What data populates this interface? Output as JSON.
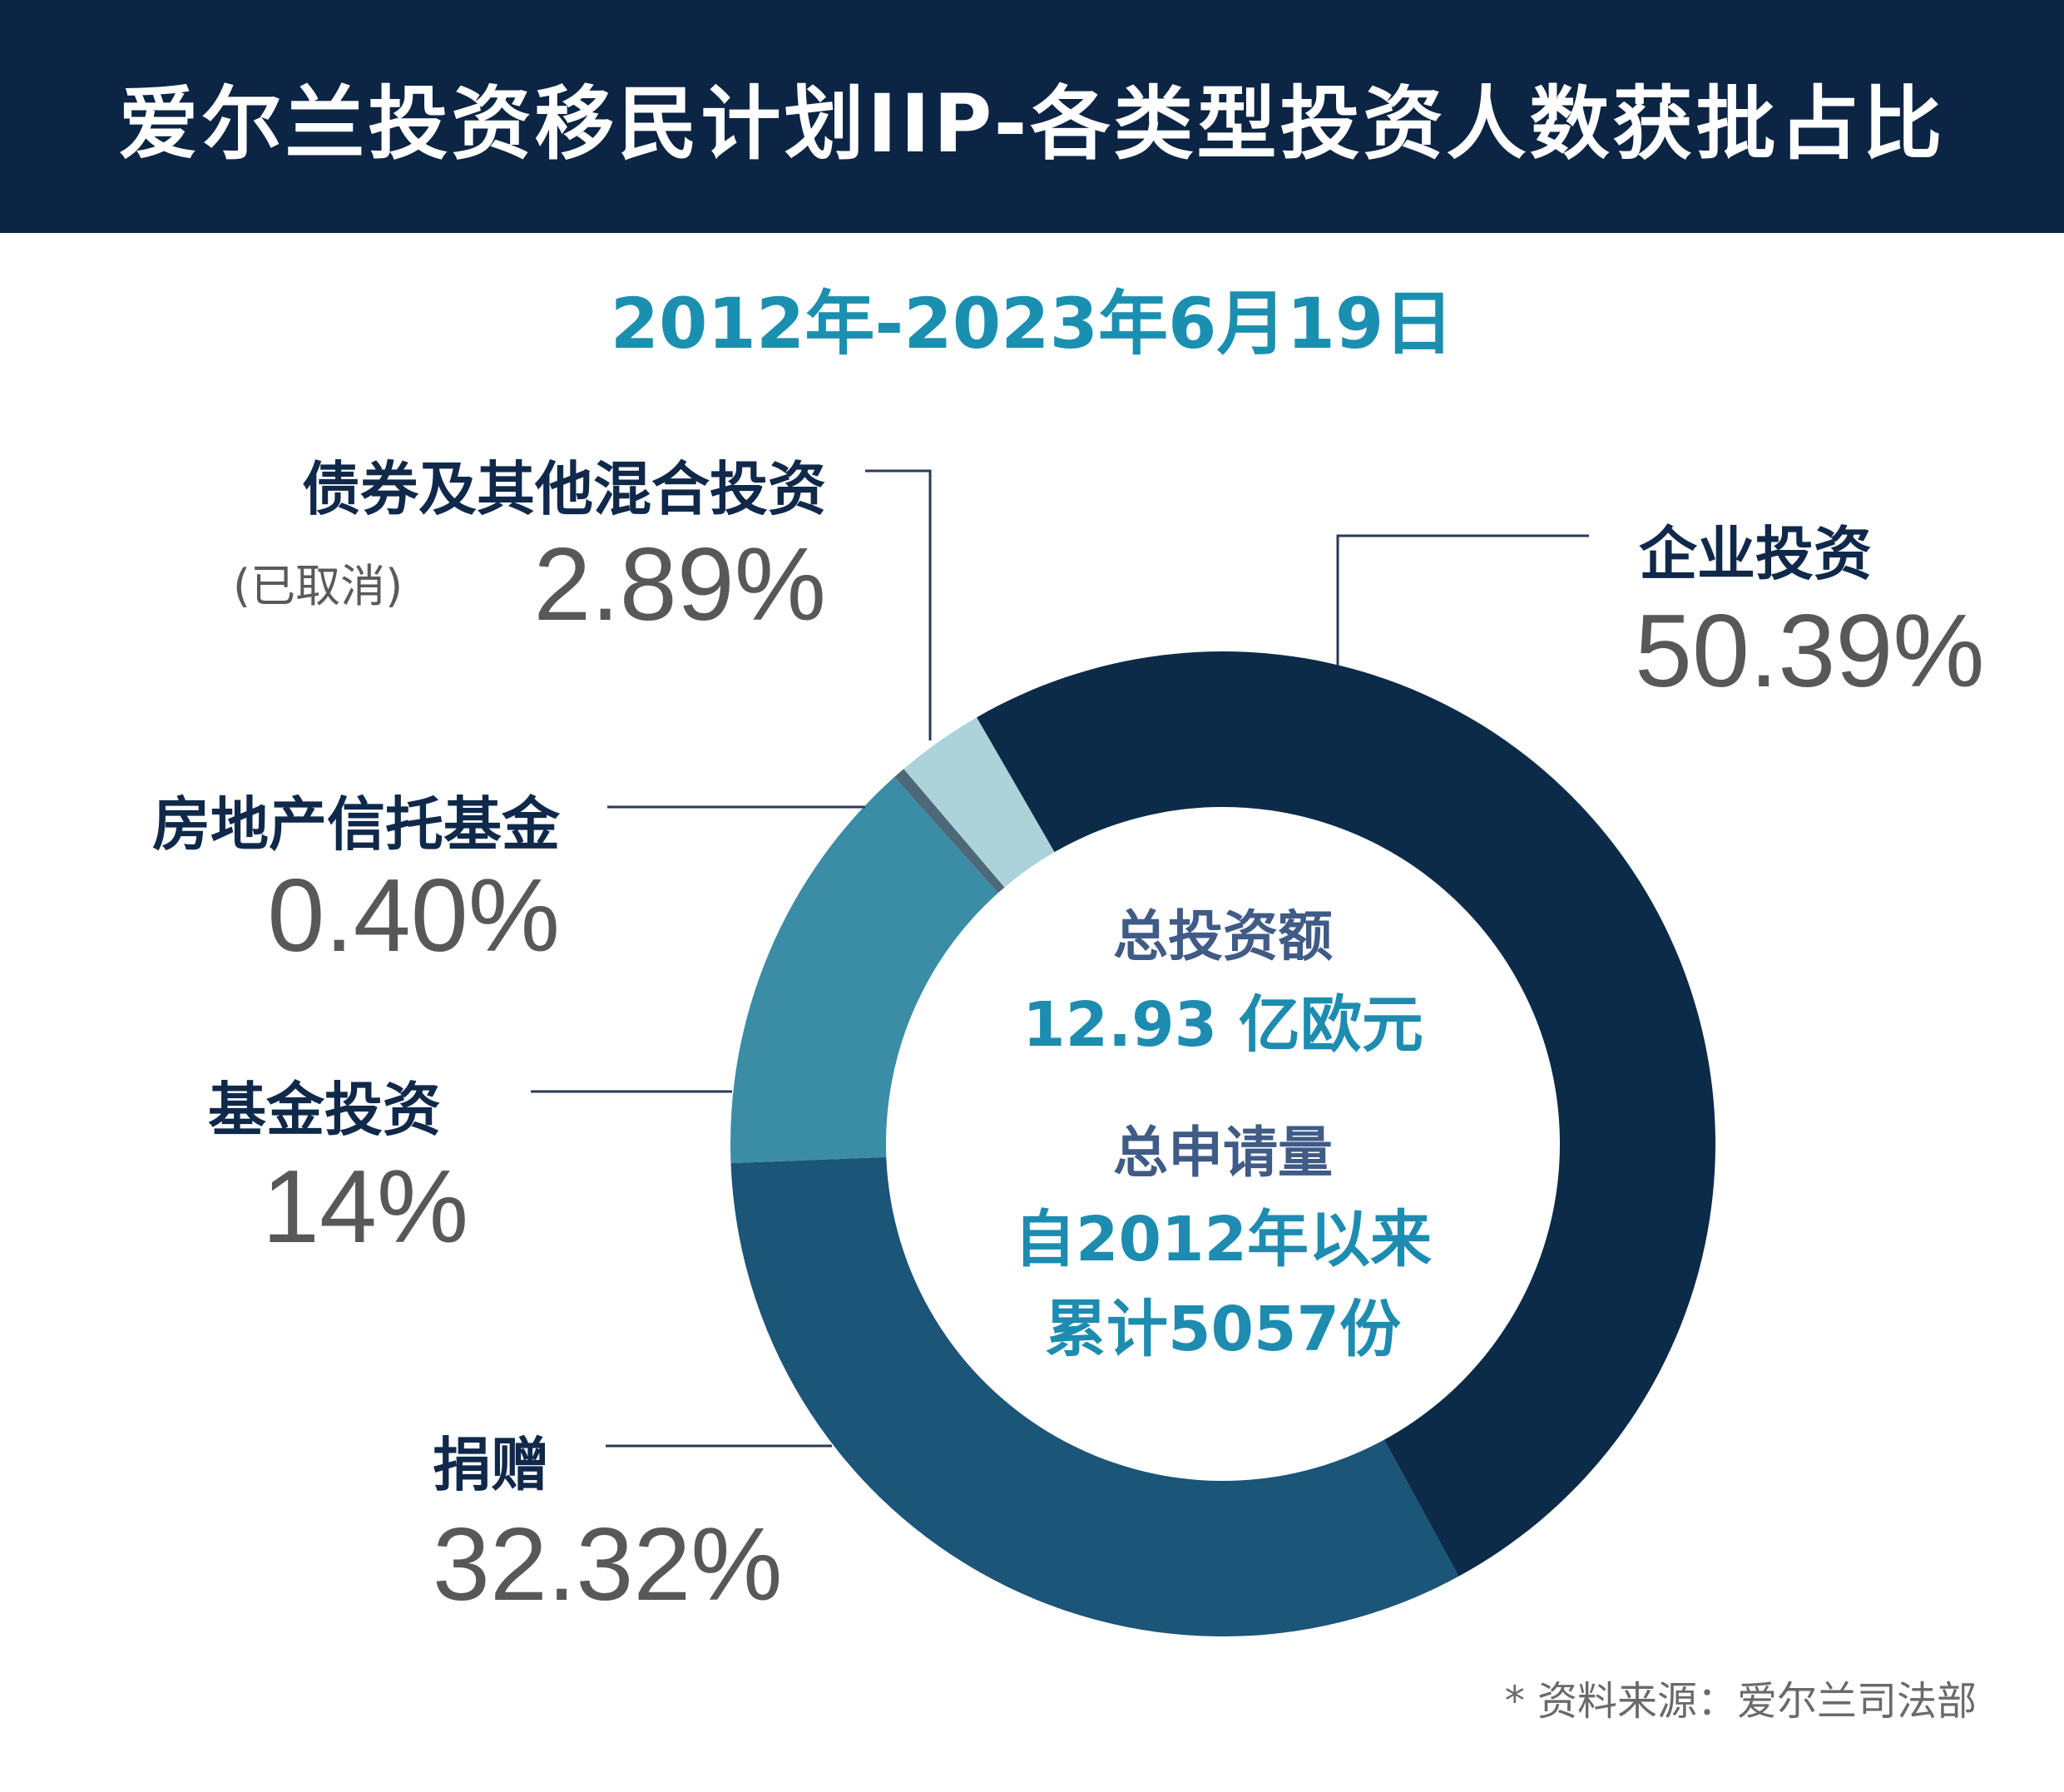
{
  "title": "爱尔兰投资移民计划IIP-各类型投资人数获批占比",
  "subtitle": "2012年-2023年6月19日",
  "chart_data": {
    "type": "pie",
    "style": "donut",
    "title": "爱尔兰投资移民计划IIP-各类型投资人数获批占比",
    "subtitle": "2012年-2023年6月19日",
    "unit": "%",
    "categories": [
      "企业投资",
      "捐赠",
      "基金投资",
      "房地产信托基金",
      "债券及其他混合投资"
    ],
    "values": [
      50.39,
      32.32,
      14,
      0.4,
      2.89
    ],
    "value_labels": [
      "50.39%",
      "32.32%",
      "14%",
      "0.40%",
      "2.89%"
    ],
    "colors": [
      "#0c2b48",
      "#1b5578",
      "#3b8ca5",
      "#4d6878",
      "#acd3da"
    ],
    "notes": {
      "债券及其他混合投资": "(已取消)"
    }
  },
  "labels": {
    "enterprise": {
      "name": "企业投资",
      "pct": "50.39%"
    },
    "donation": {
      "name": "捐赠",
      "pct": "32.32%"
    },
    "fund": {
      "name": "基金投资",
      "pct": "14%"
    },
    "reit": {
      "name": "房地产信托基金",
      "pct": "0.40%"
    },
    "bond": {
      "name": "债券及其他混合投资",
      "note": "(已取消)",
      "pct": "2.89%"
    }
  },
  "center": {
    "investment_label": "总投资额",
    "investment_value": "12.93 亿欧元",
    "applications_label": "总申请量",
    "applications_line1": "自2012年以来",
    "applications_line2": "累计5057份"
  },
  "source": "* 资料来源：爱尔兰司法部"
}
